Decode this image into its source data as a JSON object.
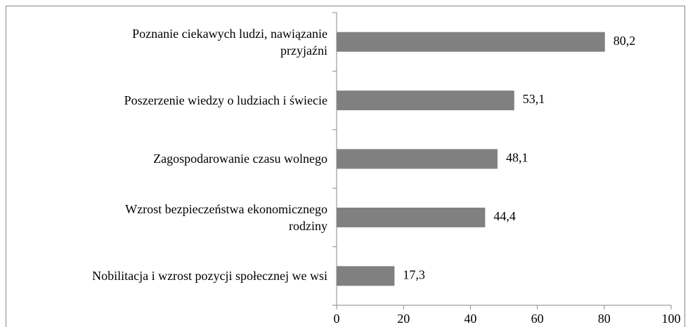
{
  "chart_data": {
    "type": "bar",
    "orientation": "horizontal",
    "categories": [
      "Poznanie ciekawych ludzi, nawiązanie\nprzyjaźni",
      "Poszerzenie wiedzy o ludziach i świecie",
      "Zagospodarowanie czasu wolnego",
      "Wzrost bezpieczeństwa ekonomicznego\nrodziny",
      "Nobilitacja i wzrost pozycji społecznej we wsi"
    ],
    "values": [
      80.2,
      53.1,
      48.1,
      44.4,
      17.3
    ],
    "value_labels": [
      "80,2",
      "53,1",
      "48,1",
      "44,4",
      "17,3"
    ],
    "color": "#808080",
    "xlim": [
      0,
      100
    ],
    "xticks": [
      0,
      20,
      40,
      60,
      80,
      100
    ],
    "grid": false
  }
}
